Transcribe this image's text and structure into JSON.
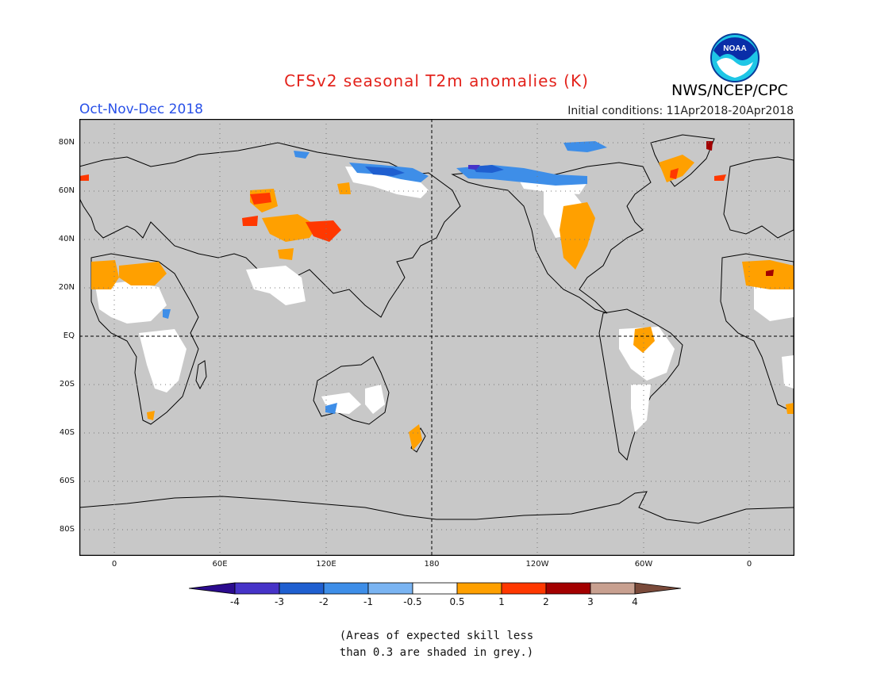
{
  "title": "CFSv2 seasonal T2m anomalies (K)",
  "period": "Oct-Nov-Dec 2018",
  "initial_conditions": "Initial conditions: 11Apr2018-20Apr2018",
  "agency": "NWS/NCEP/CPC",
  "logo_text": "NOAA",
  "lat_labels": [
    "80N",
    "60N",
    "40N",
    "20N",
    "EQ",
    "20S",
    "40S",
    "60S",
    "80S"
  ],
  "lon_labels": [
    "0",
    "60E",
    "120E",
    "180",
    "120W",
    "60W",
    "0"
  ],
  "colorbar": {
    "labels": [
      "-4",
      "-3",
      "-2",
      "-1",
      "-0.5",
      "0.5",
      "1",
      "2",
      "3",
      "4"
    ],
    "colors": [
      "#2b0b8e",
      "#4633c8",
      "#1f5fd0",
      "#3e8ee8",
      "#7ab4f2",
      "#ffffff",
      "#ffa000",
      "#ff3800",
      "#a30000",
      "#c8a090",
      "#7a4a3a"
    ]
  },
  "footnote_line1": "(Areas of expected skill less",
  "footnote_line2": "than 0.3 are shaded in grey.)",
  "colors": {
    "mask_grey": "#c8c8c8",
    "title_red": "#e3231c",
    "period_blue": "#2850e8"
  }
}
